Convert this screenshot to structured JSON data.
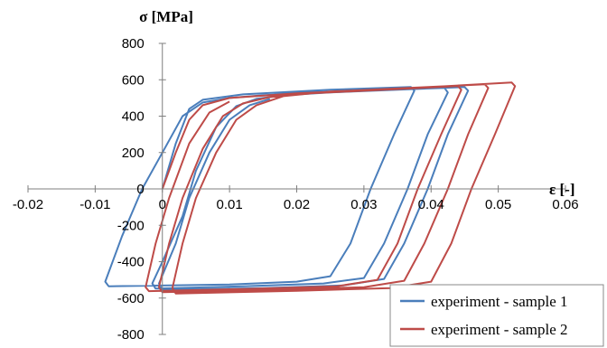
{
  "chart_data": {
    "type": "line",
    "xlabel": "ε [-]",
    "ylabel": "σ [MPa]",
    "xlim": [
      -0.02,
      0.06
    ],
    "ylim": [
      -800,
      800
    ],
    "x_ticks": [
      -0.02,
      -0.01,
      0,
      0.01,
      0.02,
      0.03,
      0.04,
      0.05,
      0.06
    ],
    "x_tick_labels": [
      "-0.02",
      "-0.01",
      "0",
      "0.01",
      "0.02",
      "0.03",
      "0.04",
      "0.05",
      "0.06"
    ],
    "y_ticks": [
      -800,
      -600,
      -400,
      -200,
      0,
      200,
      400,
      600,
      800
    ],
    "y_tick_labels": [
      "-800",
      "-600",
      "-400",
      "-200",
      "0",
      "200",
      "400",
      "600",
      "800"
    ],
    "grid": false,
    "legend_position": "bottom-right",
    "series": [
      {
        "name": "experiment - sample 1",
        "color": "#4a7ebb",
        "loops": [
          [
            [
              0.0,
              0
            ],
            [
              0.002,
              250
            ],
            [
              0.004,
              440
            ],
            [
              0.006,
              490
            ],
            [
              0.012,
              520
            ],
            [
              0.025,
              545
            ],
            [
              0.037,
              560
            ],
            [
              0.0375,
              540
            ],
            [
              0.0345,
              300
            ],
            [
              0.031,
              0
            ],
            [
              0.028,
              -300
            ],
            [
              0.025,
              -480
            ],
            [
              0.02,
              -510
            ],
            [
              0.01,
              -525
            ],
            [
              -0.008,
              -535
            ],
            [
              -0.0085,
              -510
            ],
            [
              -0.006,
              -260
            ],
            [
              -0.003,
              0
            ],
            [
              0.0,
              200
            ],
            [
              0.003,
              400
            ],
            [
              0.006,
              475
            ],
            [
              0.01,
              500
            ],
            [
              0.015,
              515
            ],
            [
              0.022,
              530
            ],
            [
              0.042,
              555
            ],
            [
              0.0425,
              530
            ],
            [
              0.0395,
              300
            ],
            [
              0.0365,
              0
            ],
            [
              0.033,
              -300
            ],
            [
              0.03,
              -490
            ],
            [
              0.024,
              -520
            ],
            [
              0.012,
              -535
            ],
            [
              -0.001,
              -548
            ],
            [
              -0.0015,
              -520
            ],
            [
              0.0,
              -400
            ],
            [
              0.003,
              -150
            ],
            [
              0.005,
              100
            ],
            [
              0.008,
              340
            ],
            [
              0.011,
              455
            ],
            [
              0.014,
              495
            ],
            [
              0.018,
              515
            ],
            [
              0.025,
              530
            ],
            [
              0.045,
              560
            ],
            [
              0.0455,
              540
            ],
            [
              0.0425,
              300
            ],
            [
              0.0395,
              0
            ],
            [
              0.036,
              -300
            ],
            [
              0.033,
              -495
            ],
            [
              0.027,
              -530
            ],
            [
              0.015,
              -545
            ],
            [
              0.0,
              -556
            ],
            [
              -0.0005,
              -520
            ],
            [
              0.002,
              -300
            ],
            [
              0.004,
              -50
            ],
            [
              0.007,
              200
            ],
            [
              0.01,
              380
            ],
            [
              0.013,
              460
            ],
            [
              0.016,
              495
            ]
          ]
        ]
      },
      {
        "name": "experiment - sample 2",
        "color": "#be4b48",
        "loops": [
          [
            [
              0.0,
              0
            ],
            [
              0.002,
              200
            ],
            [
              0.004,
              380
            ],
            [
              0.006,
              460
            ],
            [
              0.01,
              500
            ],
            [
              0.02,
              525
            ],
            [
              0.035,
              550
            ],
            [
              0.052,
              585
            ],
            [
              0.0525,
              565
            ],
            [
              0.0495,
              300
            ],
            [
              0.046,
              0
            ],
            [
              0.043,
              -300
            ],
            [
              0.04,
              -510
            ],
            [
              0.034,
              -545
            ],
            [
              0.02,
              -560
            ],
            [
              0.002,
              -575
            ],
            [
              0.0015,
              -545
            ],
            [
              0.003,
              -300
            ],
            [
              0.005,
              -50
            ],
            [
              0.008,
              200
            ],
            [
              0.011,
              380
            ],
            [
              0.014,
              460
            ],
            [
              0.018,
              510
            ],
            [
              0.025,
              535
            ],
            [
              0.048,
              575
            ],
            [
              0.0485,
              555
            ],
            [
              0.0455,
              300
            ],
            [
              0.0425,
              0
            ],
            [
              0.039,
              -300
            ],
            [
              0.036,
              -505
            ],
            [
              0.03,
              -540
            ],
            [
              0.016,
              -555
            ],
            [
              0.0,
              -568
            ],
            [
              -0.0005,
              -540
            ],
            [
              0.001,
              -300
            ],
            [
              0.003,
              -50
            ],
            [
              0.006,
              220
            ],
            [
              0.009,
              400
            ],
            [
              0.012,
              470
            ],
            [
              0.016,
              505
            ],
            [
              0.022,
              525
            ],
            [
              0.044,
              565
            ],
            [
              0.0445,
              545
            ],
            [
              0.0415,
              300
            ],
            [
              0.038,
              0
            ],
            [
              0.035,
              -300
            ],
            [
              0.032,
              -500
            ],
            [
              0.026,
              -535
            ],
            [
              0.012,
              -550
            ],
            [
              -0.002,
              -562
            ],
            [
              -0.0025,
              -540
            ],
            [
              -0.001,
              -300
            ],
            [
              0.001,
              -50
            ],
            [
              0.004,
              250
            ],
            [
              0.007,
              420
            ],
            [
              0.01,
              480
            ]
          ]
        ]
      }
    ]
  }
}
